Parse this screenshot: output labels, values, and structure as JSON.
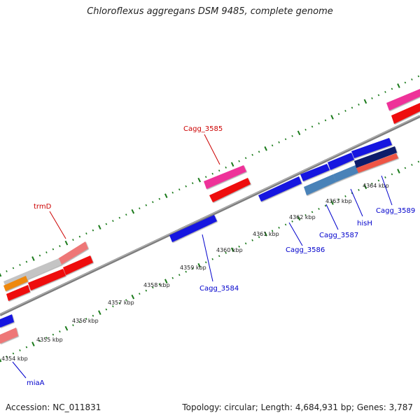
{
  "title": "Chloroflexus aggregans DSM 9485, complete genome",
  "footer": {
    "accession": "Accession: NC_011831",
    "summary": "Topology: circular; Length: 4,684,931 bp; Genes: 3,787"
  },
  "kbp_labels": [
    "4354 kbp",
    "4355 kbp",
    "4356 kbp",
    "4357 kbp",
    "4358 kbp",
    "4359 kbp",
    "4360 kbp",
    "4361 kbp",
    "4362 kbp",
    "4363 kbp",
    "4364 kbp"
  ],
  "gene_labels": {
    "top": [
      "Cagg_3585",
      "trmD"
    ],
    "bottom": [
      "Cagg_3584",
      "Cagg_3586",
      "Cagg_3587",
      "hisH",
      "Cagg_3589",
      "miaA"
    ]
  },
  "colors": {
    "backbone": "#8a8a8a",
    "tick": "#1a7a1a",
    "label_top": "#cc0000",
    "label_bottom": "#0000cc",
    "blue": "#1515e0",
    "red": "#ee1111",
    "pink": "#ee3399",
    "salmon": "#ee7777",
    "steel": "#4a82b8",
    "navy": "#0a1a6a",
    "gray": "#c4c4c4",
    "orange": "#ee8811",
    "tomato": "#ee5544"
  }
}
